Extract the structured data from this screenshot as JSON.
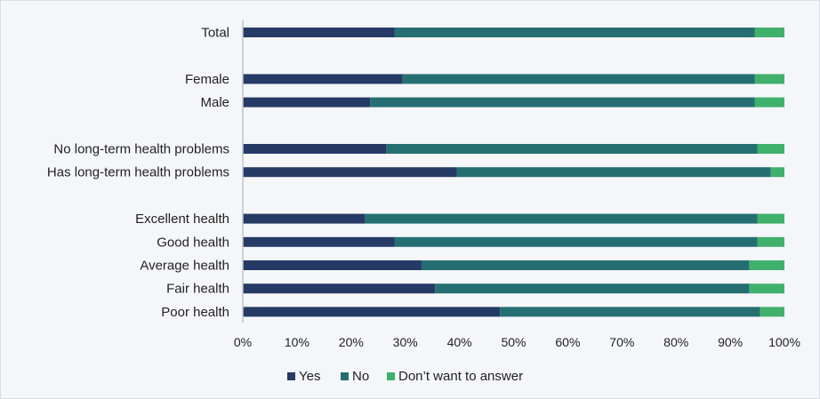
{
  "chart_data": {
    "type": "bar",
    "orientation": "horizontal",
    "stacked": "100%",
    "categories": [
      "Total",
      "",
      "Female",
      "Male",
      "",
      "No long-term health problems",
      "Has long-term health problems",
      "",
      "Excellent health",
      "Good health",
      "Average health",
      "Fair health",
      "Poor health"
    ],
    "series": [
      {
        "name": "Yes",
        "color": "#253a65",
        "values": [
          28,
          null,
          29.5,
          23.5,
          null,
          26.5,
          39.5,
          null,
          22.5,
          28,
          33,
          35.5,
          47.5
        ]
      },
      {
        "name": "No",
        "color": "#256f72",
        "values": [
          66.5,
          null,
          65,
          71,
          null,
          68.5,
          58,
          null,
          72.5,
          67,
          60.5,
          58,
          48
        ]
      },
      {
        "name": "Don’t want to answer",
        "color": "#40b16c",
        "values": [
          5.5,
          null,
          5.5,
          5.5,
          null,
          5,
          2.5,
          null,
          5,
          5,
          6.5,
          6.5,
          4.5
        ]
      }
    ],
    "xlim": [
      0,
      100
    ],
    "x_ticks": [
      "0%",
      "10%",
      "20%",
      "30%",
      "40%",
      "50%",
      "60%",
      "70%",
      "80%",
      "90%",
      "100%"
    ],
    "grid": false,
    "legend_position": "bottom",
    "title": "",
    "xlabel": "",
    "ylabel": ""
  }
}
